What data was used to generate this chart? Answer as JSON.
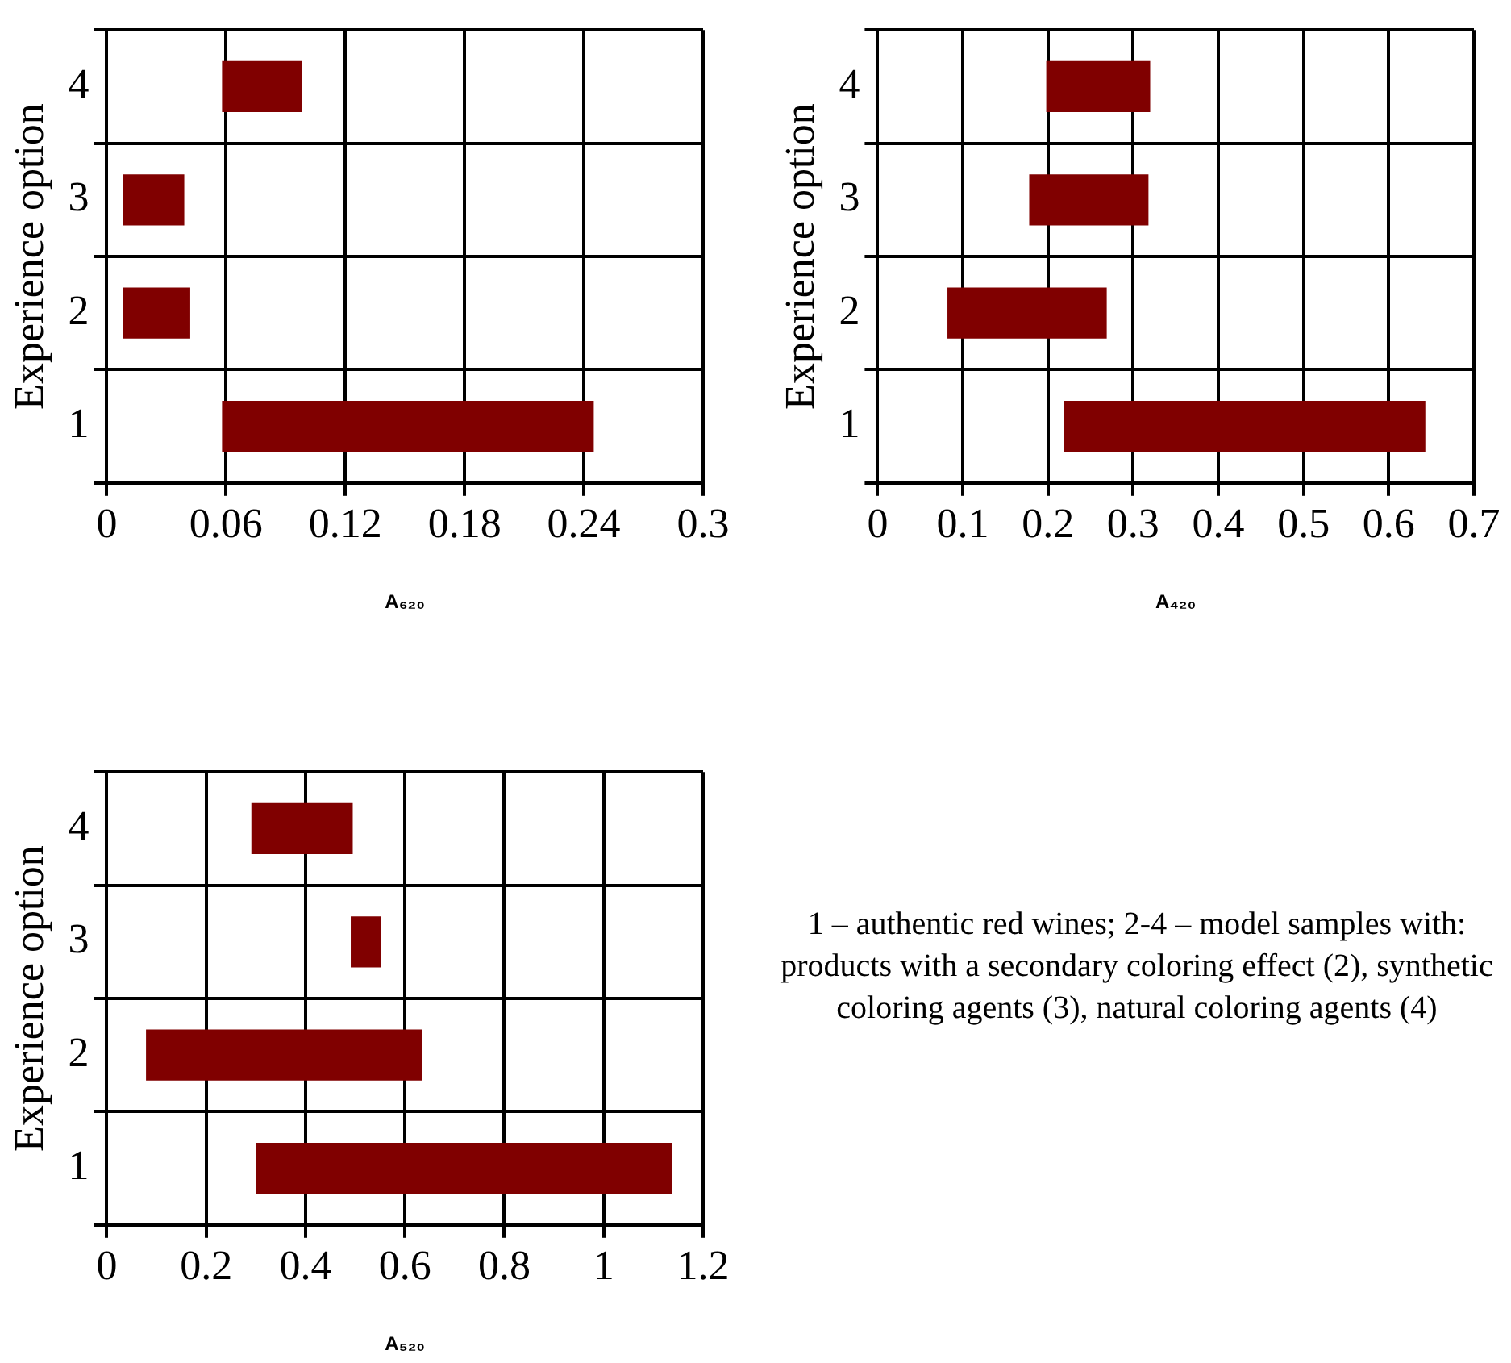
{
  "chart_data": [
    {
      "type": "bar",
      "orientation": "horizontal",
      "ylabel": "Experience option",
      "xlabel": "A₆₂₀",
      "categories": [
        "4",
        "3",
        "2",
        "1"
      ],
      "base": [
        0.058,
        0.008,
        0.008,
        0.058
      ],
      "values": [
        0.04,
        0.031,
        0.034,
        0.187
      ],
      "color": "#800000",
      "xlim": [
        0,
        0.3
      ],
      "xticks": [
        0,
        0.06,
        0.12,
        0.18,
        0.24,
        0.3
      ],
      "grid": true
    },
    {
      "type": "bar",
      "orientation": "horizontal",
      "ylabel": "Experience option",
      "xlabel": "A₄₂₀",
      "categories": [
        "4",
        "3",
        "2",
        "1"
      ],
      "base": [
        0.198,
        0.178,
        0.082,
        0.219
      ],
      "values": [
        0.122,
        0.14,
        0.187,
        0.424
      ],
      "color": "#800000",
      "xlim": [
        0,
        0.7
      ],
      "xticks": [
        0,
        0.1,
        0.2,
        0.3,
        0.4,
        0.5,
        0.6,
        0.7
      ],
      "grid": true
    },
    {
      "type": "bar",
      "orientation": "horizontal",
      "ylabel": "Experience option",
      "xlabel": "A₅₂₀",
      "categories": [
        "4",
        "3",
        "2",
        "1"
      ],
      "base": [
        0.291,
        0.491,
        0.079,
        0.301
      ],
      "values": [
        0.204,
        0.061,
        0.555,
        0.836
      ],
      "color": "#800000",
      "xlim": [
        0,
        1.2
      ],
      "xticks": [
        0,
        0.2,
        0.4,
        0.6,
        0.8,
        1,
        1.2
      ],
      "grid": true
    },
    {
      "type": "other",
      "annotations": [
        "1 – authentic red wines; 2-4 – model samples with: products with a secondary coloring effect (2), synthetic coloring agents (3), natural coloring agents (4)"
      ]
    }
  ]
}
